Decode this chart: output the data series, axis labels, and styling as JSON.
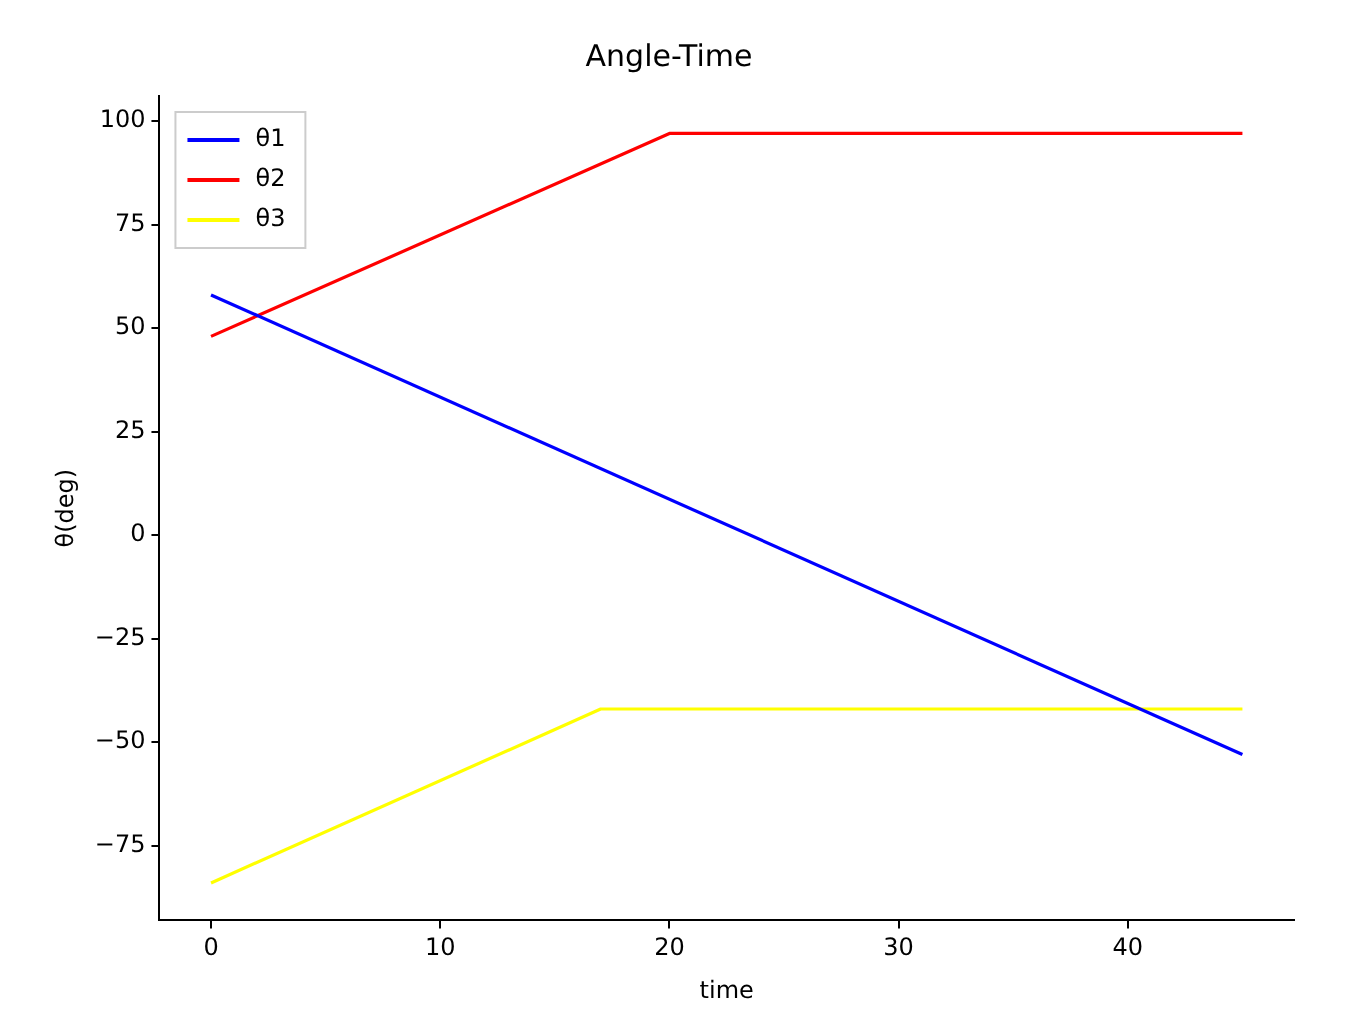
{
  "chart_data": {
    "type": "line",
    "title": "Angle-Time",
    "xlabel": "time",
    "ylabel": "θ(deg)",
    "series": [
      {
        "name": "θ1",
        "color": "#0000ff",
        "x": [
          0,
          45
        ],
        "values": [
          58,
          -53
        ]
      },
      {
        "name": "θ2",
        "color": "#ff0000",
        "x": [
          0,
          20,
          45
        ],
        "values": [
          48,
          97,
          97
        ]
      },
      {
        "name": "θ3",
        "color": "#ffff00",
        "x": [
          0,
          17,
          45
        ],
        "values": [
          -84,
          -42,
          -42
        ]
      }
    ],
    "xlim": [
      -2.25,
      47.25
    ],
    "xticks": [
      0,
      10,
      20,
      30,
      40
    ],
    "ylim": [
      -93.05,
      106.05
    ],
    "yticks": [
      {
        "value": -75,
        "label": "−75"
      },
      {
        "value": -50,
        "label": "−50"
      },
      {
        "value": -25,
        "label": "−25"
      },
      0,
      25,
      50,
      75,
      100
    ],
    "grid": false,
    "legend": "top left",
    "marker": "none",
    "line_style": "solid"
  }
}
